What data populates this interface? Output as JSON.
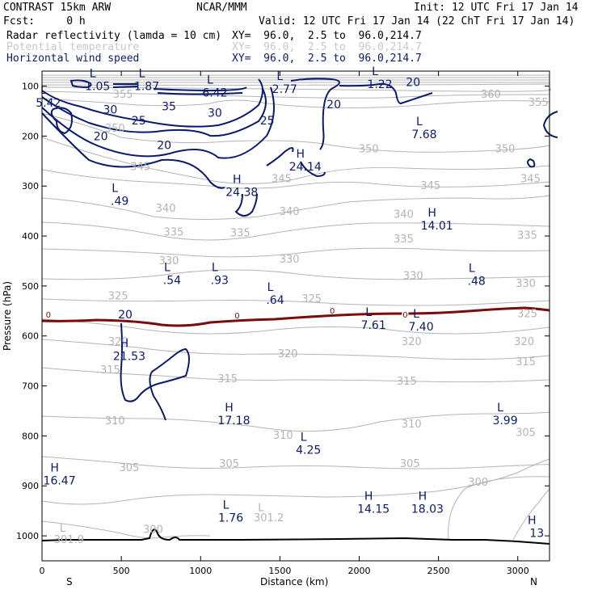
{
  "header": {
    "model": "CONTRAST 15km ARW",
    "source": "NCAR/MMM",
    "init": "Init: 12 UTC Fri 17 Jan 14",
    "fcst": "Fcst:     0 h",
    "valid": "Valid: 12 UTC Fri 17 Jan 14 (22 ChT Fri 17 Jan 14)"
  },
  "fields": [
    {
      "name": "Radar reflectivity (lamda = 10 cm)",
      "xy": "XY=  96.0,  2.5 to  96.0,214.7",
      "color": "#000000"
    },
    {
      "name": "Potential temperature",
      "xy": "XY=  96.0,  2.5 to  96.0,214.7",
      "color": "#c8c8c8"
    },
    {
      "name": "Horizontal wind speed",
      "xy": "XY=  96.0,  2.5 to  96.0,214.7",
      "color": "#0a1a6e"
    }
  ],
  "chart_data": {
    "type": "contour-cross-section",
    "xlabel": "Distance (km)",
    "ylabel": "Pressure (hPa)",
    "xlim": [
      0,
      3200
    ],
    "ylim": [
      1050,
      70
    ],
    "x_ticks": [
      0,
      500,
      1000,
      1500,
      2000,
      2500,
      3000
    ],
    "y_ticks": [
      100,
      200,
      300,
      400,
      500,
      600,
      700,
      800,
      900,
      1000
    ],
    "x_end_labels": {
      "left": "S",
      "right": "N"
    },
    "colors": {
      "theta": "#b4b4b4",
      "wind": "#0a1a6e",
      "tropopause": "#7a0c0c",
      "terrain": "#000000",
      "frame": "#000000"
    },
    "theta_contour_labels": [
      {
        "text": "355",
        "x": 510,
        "p": 117
      },
      {
        "text": "350",
        "x": 460,
        "p": 185
      },
      {
        "text": "360",
        "x": 2830,
        "p": 117
      },
      {
        "text": "355",
        "x": 3130,
        "p": 133
      },
      {
        "text": "350",
        "x": 2060,
        "p": 226
      },
      {
        "text": "350",
        "x": 2920,
        "p": 226
      },
      {
        "text": "345",
        "x": 620,
        "p": 262
      },
      {
        "text": "345",
        "x": 1510,
        "p": 286
      },
      {
        "text": "345",
        "x": 2450,
        "p": 300
      },
      {
        "text": "345",
        "x": 3080,
        "p": 286
      },
      {
        "text": "340",
        "x": 780,
        "p": 345
      },
      {
        "text": "340",
        "x": 1560,
        "p": 351
      },
      {
        "text": "340",
        "x": 2280,
        "p": 357
      },
      {
        "text": "335",
        "x": 830,
        "p": 393
      },
      {
        "text": "335",
        "x": 1250,
        "p": 394
      },
      {
        "text": "335",
        "x": 2280,
        "p": 406
      },
      {
        "text": "335",
        "x": 3060,
        "p": 399
      },
      {
        "text": "330",
        "x": 800,
        "p": 450
      },
      {
        "text": "330",
        "x": 1560,
        "p": 447
      },
      {
        "text": "330",
        "x": 2340,
        "p": 480
      },
      {
        "text": "330",
        "x": 3050,
        "p": 495
      },
      {
        "text": "325",
        "x": 480,
        "p": 520
      },
      {
        "text": "325",
        "x": 1700,
        "p": 526
      },
      {
        "text": "325",
        "x": 3060,
        "p": 556
      },
      {
        "text": "320",
        "x": 480,
        "p": 612
      },
      {
        "text": "320",
        "x": 1550,
        "p": 636
      },
      {
        "text": "320",
        "x": 2330,
        "p": 612
      },
      {
        "text": "320",
        "x": 3040,
        "p": 612
      },
      {
        "text": "315",
        "x": 430,
        "p": 668
      },
      {
        "text": "315",
        "x": 1170,
        "p": 686
      },
      {
        "text": "315",
        "x": 2300,
        "p": 691
      },
      {
        "text": "315",
        "x": 3050,
        "p": 652
      },
      {
        "text": "310",
        "x": 460,
        "p": 770
      },
      {
        "text": "310",
        "x": 1520,
        "p": 799
      },
      {
        "text": "310",
        "x": 2330,
        "p": 777
      },
      {
        "text": "305",
        "x": 3050,
        "p": 794
      },
      {
        "text": "305",
        "x": 550,
        "p": 864
      },
      {
        "text": "305",
        "x": 1180,
        "p": 856
      },
      {
        "text": "305",
        "x": 2320,
        "p": 856
      },
      {
        "text": "300",
        "x": 2750,
        "p": 893
      },
      {
        "text": "300",
        "x": 700,
        "p": 988
      },
      {
        "text": "301.2",
        "x": 1430,
        "p": 964
      },
      {
        "text": "301.9",
        "x": 170,
        "p": 1008
      },
      {
        "text": "L",
        "x": 130,
        "p": 985
      },
      {
        "text": "L",
        "x": 1380,
        "p": 944
      }
    ],
    "wind_contour_labels": [
      {
        "text": "30",
        "x": 430,
        "p": 147
      },
      {
        "text": "35",
        "x": 800,
        "p": 140
      },
      {
        "text": "30",
        "x": 1090,
        "p": 153
      },
      {
        "text": "25",
        "x": 610,
        "p": 169
      },
      {
        "text": "25",
        "x": 1420,
        "p": 169
      },
      {
        "text": "20",
        "x": 370,
        "p": 200
      },
      {
        "text": "20",
        "x": 770,
        "p": 218
      },
      {
        "text": "20",
        "x": 1840,
        "p": 136
      },
      {
        "text": "20",
        "x": 2340,
        "p": 92
      },
      {
        "text": "20",
        "x": 525,
        "p": 557
      }
    ],
    "wind_extrema": [
      {
        "type": "L",
        "value": "1.05",
        "x": 350,
        "p": 95
      },
      {
        "type": "L",
        "value": "1.87",
        "x": 660,
        "p": 95
      },
      {
        "type": "L",
        "value": "6.42",
        "x": 1090,
        "p": 108
      },
      {
        "type": "L",
        "value": "2.77",
        "x": 1530,
        "p": 101
      },
      {
        "type": "L",
        "value": "1.22",
        "x": 2130,
        "p": 91
      },
      {
        "type": "L",
        "value": "5.42",
        "x": 40,
        "p": 128
      },
      {
        "type": "L",
        "value": "7.68",
        "x": 2410,
        "p": 191
      },
      {
        "type": "H",
        "value": "24.14",
        "x": 1660,
        "p": 256
      },
      {
        "type": "H",
        "value": "24.38",
        "x": 1260,
        "p": 307
      },
      {
        "type": "L",
        "value": ".49",
        "x": 490,
        "p": 325
      },
      {
        "type": "H",
        "value": "14.01",
        "x": 2490,
        "p": 374
      },
      {
        "type": "L",
        "value": ".54",
        "x": 820,
        "p": 483
      },
      {
        "type": "L",
        "value": ".93",
        "x": 1120,
        "p": 483
      },
      {
        "type": "L",
        "value": ".48",
        "x": 2740,
        "p": 485
      },
      {
        "type": "L",
        "value": ".64",
        "x": 1470,
        "p": 523
      },
      {
        "type": "L",
        "value": "7.61",
        "x": 2090,
        "p": 573
      },
      {
        "type": "L",
        "value": "7.40",
        "x": 2390,
        "p": 576
      },
      {
        "type": "H",
        "value": "21.53",
        "x": 550,
        "p": 635
      },
      {
        "type": "H",
        "value": "17.18",
        "x": 1210,
        "p": 764
      },
      {
        "type": "L",
        "value": "3.99",
        "x": 2920,
        "p": 764
      },
      {
        "type": "L",
        "value": "4.25",
        "x": 1680,
        "p": 823
      },
      {
        "type": "H",
        "value": "16.47",
        "x": 110,
        "p": 884
      },
      {
        "type": "H",
        "value": "14.15",
        "x": 2090,
        "p": 941
      },
      {
        "type": "H",
        "value": "18.03",
        "x": 2430,
        "p": 941
      },
      {
        "type": "L",
        "value": "1.76",
        "x": 1190,
        "p": 959
      },
      {
        "type": "H",
        "value": "13",
        "x": 3120,
        "p": 989
      }
    ],
    "tropopause_labels": [
      {
        "text": "0",
        "x": 40,
        "p": 558
      },
      {
        "text": "0",
        "x": 1230,
        "p": 560
      },
      {
        "text": "0",
        "x": 1830,
        "p": 550
      },
      {
        "text": "0",
        "x": 2290,
        "p": 558
      }
    ]
  }
}
